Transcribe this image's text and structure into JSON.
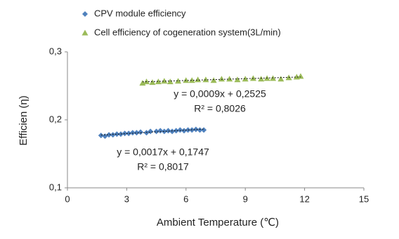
{
  "chart_data": {
    "type": "scatter",
    "xlabel": "Ambient Temperature (℃)",
    "ylabel": "Efficien (η)",
    "xlim": [
      0,
      15
    ],
    "xticks": [
      0,
      3,
      6,
      9,
      12,
      15
    ],
    "ylim": [
      0.1,
      0.3
    ],
    "yticks": [
      {
        "value": 0.1,
        "label": "0,1"
      },
      {
        "value": 0.2,
        "label": "0,2"
      },
      {
        "value": 0.3,
        "label": "0,3"
      }
    ],
    "grid": false,
    "legend": "top",
    "series": [
      {
        "name": "CPV module efficiency",
        "color": "#4f81bd",
        "marker": "diamond",
        "x": [
          1.7,
          1.9,
          2.1,
          2.3,
          2.5,
          2.7,
          2.9,
          3.1,
          3.3,
          3.5,
          3.7,
          4.0,
          4.2,
          4.5,
          4.7,
          4.9,
          5.1,
          5.3,
          5.5,
          5.7,
          5.9,
          6.1,
          6.3,
          6.5,
          6.7,
          6.9
        ],
        "values": [
          0.177,
          0.176,
          0.178,
          0.178,
          0.179,
          0.179,
          0.18,
          0.18,
          0.181,
          0.181,
          0.182,
          0.181,
          0.183,
          0.183,
          0.184,
          0.183,
          0.184,
          0.183,
          0.184,
          0.185,
          0.184,
          0.185,
          0.185,
          0.186,
          0.185,
          0.185
        ],
        "trendline": {
          "x": [
            1.7,
            6.9
          ],
          "values": [
            0.1776,
            0.1864
          ]
        }
      },
      {
        "name": "Cell efficiency of cogeneration system(3L/min)",
        "color": "#9bbb59",
        "marker": "triangle",
        "x": [
          3.8,
          4.0,
          4.3,
          4.6,
          4.9,
          5.2,
          5.6,
          6.0,
          6.3,
          6.6,
          7.0,
          7.4,
          7.8,
          8.2,
          8.6,
          9.0,
          9.4,
          9.8,
          10.1,
          10.4,
          10.8,
          11.2,
          11.6,
          11.8
        ],
        "values": [
          0.254,
          0.256,
          0.255,
          0.256,
          0.257,
          0.256,
          0.257,
          0.258,
          0.258,
          0.259,
          0.259,
          0.258,
          0.26,
          0.26,
          0.259,
          0.26,
          0.261,
          0.26,
          0.261,
          0.261,
          0.26,
          0.262,
          0.263,
          0.264
        ],
        "trendline": {
          "x": [
            3.8,
            11.8
          ],
          "values": [
            0.2559,
            0.2631
          ]
        }
      }
    ],
    "annotations": [
      "y = 0,0009x + 0,2525",
      "R² = 0,8026",
      "y = 0,0017x + 0,1747",
      "R² = 0,8017"
    ]
  }
}
